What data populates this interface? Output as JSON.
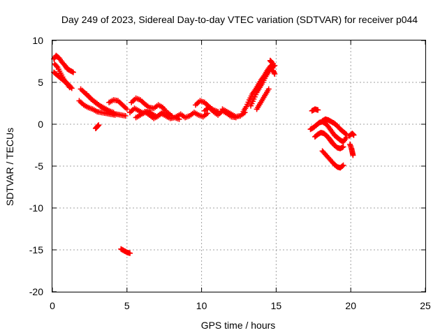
{
  "chart_data": {
    "type": "scatter",
    "title": "Day 249 of 2023, Sidereal Day-to-day VTEC variation (SDTVAR) for receiver p044",
    "xlabel": "GPS time / hours",
    "ylabel": "SDTVAR / TECUs",
    "xlim": [
      0,
      25
    ],
    "ylim": [
      -20,
      10
    ],
    "xticks": [
      "0",
      "5",
      "10",
      "15",
      "20",
      "25"
    ],
    "yticks": [
      "10",
      "5",
      "0",
      "-5",
      "-10",
      "-15",
      "-20"
    ],
    "xtick_values": [
      0,
      5,
      10,
      15,
      20,
      25
    ],
    "ytick_values": [
      10,
      5,
      0,
      -5,
      -10,
      -15,
      -20
    ],
    "grid": true,
    "marker": "plus",
    "color": "#ff0000",
    "segments": [
      {
        "x": [
          0.1,
          0.25,
          0.45,
          0.65,
          0.85,
          1.0,
          1.2,
          1.4
        ],
        "y": [
          7.8,
          8.2,
          7.9,
          7.4,
          7.0,
          6.6,
          6.4,
          6.2
        ]
      },
      {
        "x": [
          0.1,
          0.3,
          0.5,
          0.7,
          0.9,
          1.1,
          1.3
        ],
        "y": [
          6.2,
          5.9,
          5.6,
          5.3,
          5.0,
          4.7,
          4.3
        ]
      },
      {
        "x": [
          0.15,
          0.35,
          0.55,
          0.75,
          0.95,
          1.15
        ],
        "y": [
          7.2,
          6.8,
          6.1,
          5.4,
          4.9,
          4.4
        ]
      },
      {
        "x": [
          1.9,
          2.2,
          2.5,
          2.8,
          3.1,
          3.4,
          3.7,
          4.0,
          4.3,
          4.6,
          4.9
        ],
        "y": [
          4.2,
          3.7,
          3.2,
          2.7,
          2.3,
          1.9,
          1.6,
          1.3,
          1.2,
          1.1,
          1.0
        ]
      },
      {
        "x": [
          1.8,
          2.1,
          2.4,
          2.7,
          3.0,
          3.3,
          3.6,
          3.9,
          4.2
        ],
        "y": [
          2.8,
          2.3,
          2.0,
          1.8,
          1.5,
          1.4,
          1.3,
          1.2,
          1.1
        ]
      },
      {
        "x": [
          2.3,
          2.6,
          2.9,
          3.2,
          3.5,
          3.8,
          4.1
        ],
        "y": [
          3.6,
          3.0,
          2.6,
          2.2,
          1.9,
          1.6,
          1.4
        ]
      },
      {
        "x": [
          3.8,
          4.1,
          4.4,
          4.7,
          5.0
        ],
        "y": [
          2.6,
          2.9,
          2.8,
          2.3,
          1.8
        ]
      },
      {
        "x": [
          2.9,
          3.0,
          3.1
        ],
        "y": [
          -0.5,
          -0.3,
          -0.1
        ]
      },
      {
        "x": [
          4.6,
          4.8,
          5.0,
          5.2
        ],
        "y": [
          -14.9,
          -15.1,
          -15.3,
          -15.4
        ]
      },
      {
        "x": [
          5.3,
          5.6,
          5.9,
          6.2,
          6.5,
          6.8,
          7.1,
          7.4,
          7.7,
          8.0
        ],
        "y": [
          2.6,
          3.1,
          2.9,
          2.4,
          2.0,
          1.9,
          2.3,
          2.0,
          1.4,
          1.0
        ]
      },
      {
        "x": [
          5.2,
          5.5,
          5.8,
          6.1,
          6.4,
          6.7,
          7.0,
          7.3,
          7.6,
          7.9,
          8.2,
          8.5
        ],
        "y": [
          1.4,
          1.9,
          1.6,
          1.3,
          1.6,
          1.2,
          0.9,
          1.3,
          1.0,
          0.7,
          0.8,
          0.6
        ]
      },
      {
        "x": [
          5.6,
          5.9,
          6.2,
          6.5,
          6.8,
          7.1,
          7.4,
          7.7
        ],
        "y": [
          0.8,
          1.1,
          1.5,
          1.1,
          0.7,
          1.0,
          1.4,
          0.9
        ]
      },
      {
        "x": [
          8.3,
          8.6,
          8.9,
          9.2,
          9.5,
          9.8,
          10.1,
          10.4
        ],
        "y": [
          0.9,
          1.2,
          0.8,
          1.0,
          1.4,
          1.1,
          0.9,
          1.3
        ]
      },
      {
        "x": [
          9.6,
          9.9,
          10.2,
          10.5,
          10.8,
          11.1
        ],
        "y": [
          2.3,
          2.8,
          2.6,
          2.1,
          1.7,
          1.5
        ]
      },
      {
        "x": [
          10.2,
          10.5,
          10.8,
          11.1,
          11.4,
          11.7,
          12.0,
          12.3
        ],
        "y": [
          1.6,
          2.0,
          1.5,
          1.1,
          1.6,
          1.3,
          0.9,
          0.8
        ]
      },
      {
        "x": [
          11.4,
          11.7,
          12.0,
          12.3,
          12.6,
          12.9
        ],
        "y": [
          1.8,
          1.5,
          1.2,
          0.9,
          1.0,
          1.4
        ]
      },
      {
        "x": [
          12.8,
          13.0,
          13.2,
          13.4,
          13.6,
          13.8,
          14.0,
          14.2,
          14.4,
          14.6,
          14.8
        ],
        "y": [
          1.5,
          2.1,
          2.9,
          3.6,
          4.1,
          4.7,
          5.3,
          5.8,
          6.4,
          6.9,
          7.2
        ]
      },
      {
        "x": [
          13.3,
          13.5,
          13.7,
          13.9,
          14.1,
          14.3,
          14.5,
          14.7,
          14.9
        ],
        "y": [
          2.2,
          3.0,
          3.8,
          4.4,
          5.0,
          5.7,
          6.3,
          6.8,
          7.0
        ]
      },
      {
        "x": [
          13.7,
          13.9,
          14.1,
          14.3,
          14.5
        ],
        "y": [
          1.8,
          2.4,
          3.0,
          3.6,
          4.2
        ]
      },
      {
        "x": [
          14.6,
          14.7,
          14.8,
          14.9
        ],
        "y": [
          7.6,
          7.4,
          6.4,
          6.0
        ]
      },
      {
        "x": [
          17.4,
          17.6,
          17.8
        ],
        "y": [
          1.6,
          1.8,
          1.7
        ]
      },
      {
        "x": [
          17.3,
          17.5,
          17.7,
          17.9,
          18.1,
          18.3,
          18.5,
          18.7,
          18.9,
          19.1,
          19.3,
          19.5,
          19.7
        ],
        "y": [
          -0.6,
          -0.4,
          -0.1,
          0.2,
          0.3,
          0.1,
          -0.3,
          -0.8,
          -1.3,
          -1.6,
          -1.9,
          -2.1,
          -1.6
        ]
      },
      {
        "x": [
          18.1,
          18.3,
          18.5,
          18.7,
          18.9,
          19.1,
          19.3,
          19.5,
          19.7
        ],
        "y": [
          0.4,
          0.6,
          0.5,
          0.3,
          0.1,
          -0.2,
          -0.6,
          -0.9,
          -1.2
        ]
      },
      {
        "x": [
          17.6,
          17.8,
          18.0,
          18.2,
          18.4,
          18.6,
          18.8
        ],
        "y": [
          -1.5,
          -1.2,
          -1.0,
          -1.1,
          -1.4,
          -1.8,
          -2.3
        ]
      },
      {
        "x": [
          18.1,
          18.3,
          18.5,
          18.7,
          18.9,
          19.1,
          19.3,
          19.5
        ],
        "y": [
          -3.2,
          -3.6,
          -4.0,
          -4.4,
          -4.8,
          -5.1,
          -5.2,
          -4.9
        ]
      },
      {
        "x": [
          18.5,
          18.7,
          18.9,
          19.1,
          19.3,
          19.5
        ],
        "y": [
          -1.6,
          -2.1,
          -2.5,
          -2.8,
          -2.9,
          -2.7
        ]
      },
      {
        "x": [
          19.9,
          20.1,
          20.2
        ],
        "y": [
          -1.4,
          -1.1,
          -1.3
        ]
      },
      {
        "x": [
          19.95,
          20.05,
          20.1,
          20.15
        ],
        "y": [
          -2.4,
          -2.9,
          -3.3,
          -3.7
        ]
      }
    ]
  }
}
